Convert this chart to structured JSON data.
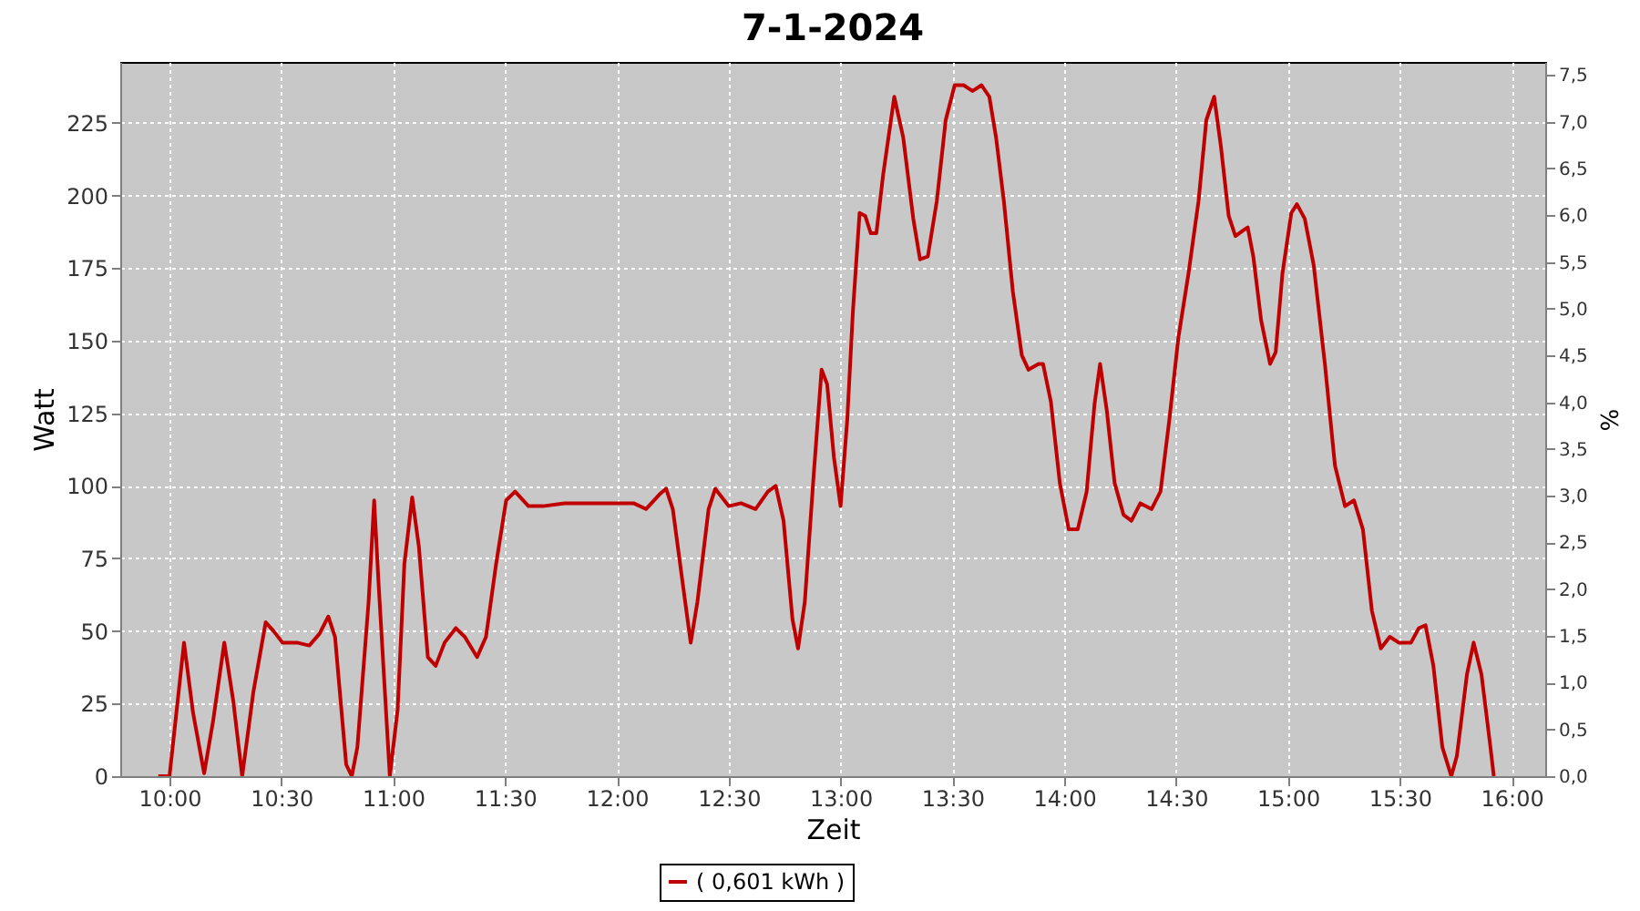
{
  "chart_data": {
    "type": "line",
    "title": "7-1-2024",
    "xlabel": "Zeit",
    "ylabel": "Watt",
    "y2label": "%",
    "xlim": [
      9.78,
      16.15
    ],
    "xticks": [
      {
        "value": 10,
        "label": "10:00"
      },
      {
        "value": 10.5,
        "label": "10:30"
      },
      {
        "value": 11,
        "label": "11:00"
      },
      {
        "value": 11.5,
        "label": "11:30"
      },
      {
        "value": 12,
        "label": "12:00"
      },
      {
        "value": 12.5,
        "label": "12:30"
      },
      {
        "value": 13,
        "label": "13:00"
      },
      {
        "value": 13.5,
        "label": "13:30"
      },
      {
        "value": 14,
        "label": "14:00"
      },
      {
        "value": 14.5,
        "label": "14:30"
      },
      {
        "value": 15,
        "label": "15:00"
      },
      {
        "value": 15.5,
        "label": "15:30"
      },
      {
        "value": 16,
        "label": "16:00"
      }
    ],
    "ylim": [
      0,
      246
    ],
    "yticks": [
      0,
      25,
      50,
      75,
      100,
      125,
      150,
      175,
      200,
      225
    ],
    "y2lim": [
      0,
      7.64
    ],
    "y2ticks": [
      {
        "value": 0,
        "label": "0,0"
      },
      {
        "value": 0.5,
        "label": "0,5"
      },
      {
        "value": 1,
        "label": "1,0"
      },
      {
        "value": 1.5,
        "label": "1,5"
      },
      {
        "value": 2,
        "label": "2,0"
      },
      {
        "value": 2.5,
        "label": "2,5"
      },
      {
        "value": 3,
        "label": "3,0"
      },
      {
        "value": 3.5,
        "label": "3,5"
      },
      {
        "value": 4,
        "label": "4,0"
      },
      {
        "value": 4.5,
        "label": "4,5"
      },
      {
        "value": 5,
        "label": "5,0"
      },
      {
        "value": 5.5,
        "label": "5,5"
      },
      {
        "value": 6,
        "label": "6,0"
      },
      {
        "value": 6.5,
        "label": "6,5"
      },
      {
        "value": 7,
        "label": "7,0"
      },
      {
        "value": 7.5,
        "label": "7,5"
      }
    ],
    "grid": true,
    "legend": "bottom",
    "series": [
      {
        "name": "( 0,601 kWh )",
        "color": "#c00000",
        "x": [
          9.95,
          10.0,
          10.065,
          10.105,
          10.155,
          10.195,
          10.245,
          10.285,
          10.325,
          10.375,
          10.43,
          10.465,
          10.505,
          10.57,
          10.625,
          10.67,
          10.71,
          10.74,
          10.79,
          10.815,
          10.84,
          10.89,
          10.915,
          10.935,
          10.985,
          11.02,
          11.05,
          11.085,
          11.115,
          11.155,
          11.19,
          11.23,
          11.28,
          11.32,
          11.375,
          11.415,
          11.46,
          11.505,
          11.545,
          11.605,
          11.67,
          11.765,
          12.01,
          12.075,
          12.13,
          12.19,
          12.22,
          12.25,
          12.295,
          12.33,
          12.36,
          12.41,
          12.44,
          12.5,
          12.555,
          12.62,
          12.675,
          12.71,
          12.745,
          12.785,
          12.81,
          12.84,
          12.88,
          12.915,
          12.94,
          12.97,
          13.0,
          13.03,
          13.055,
          13.085,
          13.11,
          13.135,
          13.16,
          13.19,
          13.24,
          13.28,
          13.325,
          13.355,
          13.39,
          13.43,
          13.47,
          13.51,
          13.55,
          13.59,
          13.63,
          13.665,
          13.695,
          13.73,
          13.77,
          13.81,
          13.84,
          13.885,
          13.905,
          13.94,
          13.98,
          14.02,
          14.06,
          14.1,
          14.135,
          14.16,
          14.19,
          14.225,
          14.265,
          14.3,
          14.34,
          14.39,
          14.43,
          14.47,
          14.51,
          14.555,
          14.6,
          14.635,
          14.67,
          14.7,
          14.735,
          14.765,
          14.8,
          14.82,
          14.845,
          14.88,
          14.92,
          14.945,
          14.975,
          15.015,
          15.04,
          15.075,
          15.115,
          15.165,
          15.21,
          15.255,
          15.295,
          15.335,
          15.375,
          15.415,
          15.455,
          15.495,
          15.55,
          15.585,
          15.615,
          15.65,
          15.69,
          15.73,
          15.755,
          15.8,
          15.83,
          15.865,
          15.905,
          15.92
        ],
        "values": [
          0,
          0,
          46,
          22,
          1,
          19,
          46,
          26,
          0,
          29,
          53,
          50,
          46,
          46,
          45,
          49,
          55,
          48,
          4,
          0,
          10,
          60,
          95,
          66,
          0,
          23,
          73,
          96,
          79,
          41,
          38,
          46,
          51,
          48,
          41,
          48,
          73,
          95,
          98,
          93,
          93,
          94,
          94,
          94,
          92,
          97,
          99,
          92,
          66,
          46,
          60,
          92,
          99,
          93,
          94,
          92,
          98,
          100,
          88,
          54,
          44,
          60,
          104,
          140,
          135,
          110,
          93,
          123,
          160,
          194,
          193,
          187,
          187,
          207,
          234,
          220,
          192,
          178,
          179,
          198,
          226,
          238,
          238,
          236,
          238,
          234,
          220,
          198,
          167,
          145,
          140,
          142,
          142,
          129,
          101,
          85,
          85,
          98,
          128,
          142,
          126,
          101,
          90,
          88,
          94,
          92,
          98,
          123,
          151,
          173,
          198,
          226,
          234,
          217,
          193,
          186,
          188,
          189,
          179,
          157,
          142,
          146,
          173,
          194,
          197,
          192,
          176,
          142,
          107,
          93,
          95,
          85,
          57,
          44,
          48,
          46,
          46,
          51,
          52,
          38,
          10,
          0,
          7,
          35,
          46,
          35,
          10,
          0
        ]
      }
    ]
  }
}
